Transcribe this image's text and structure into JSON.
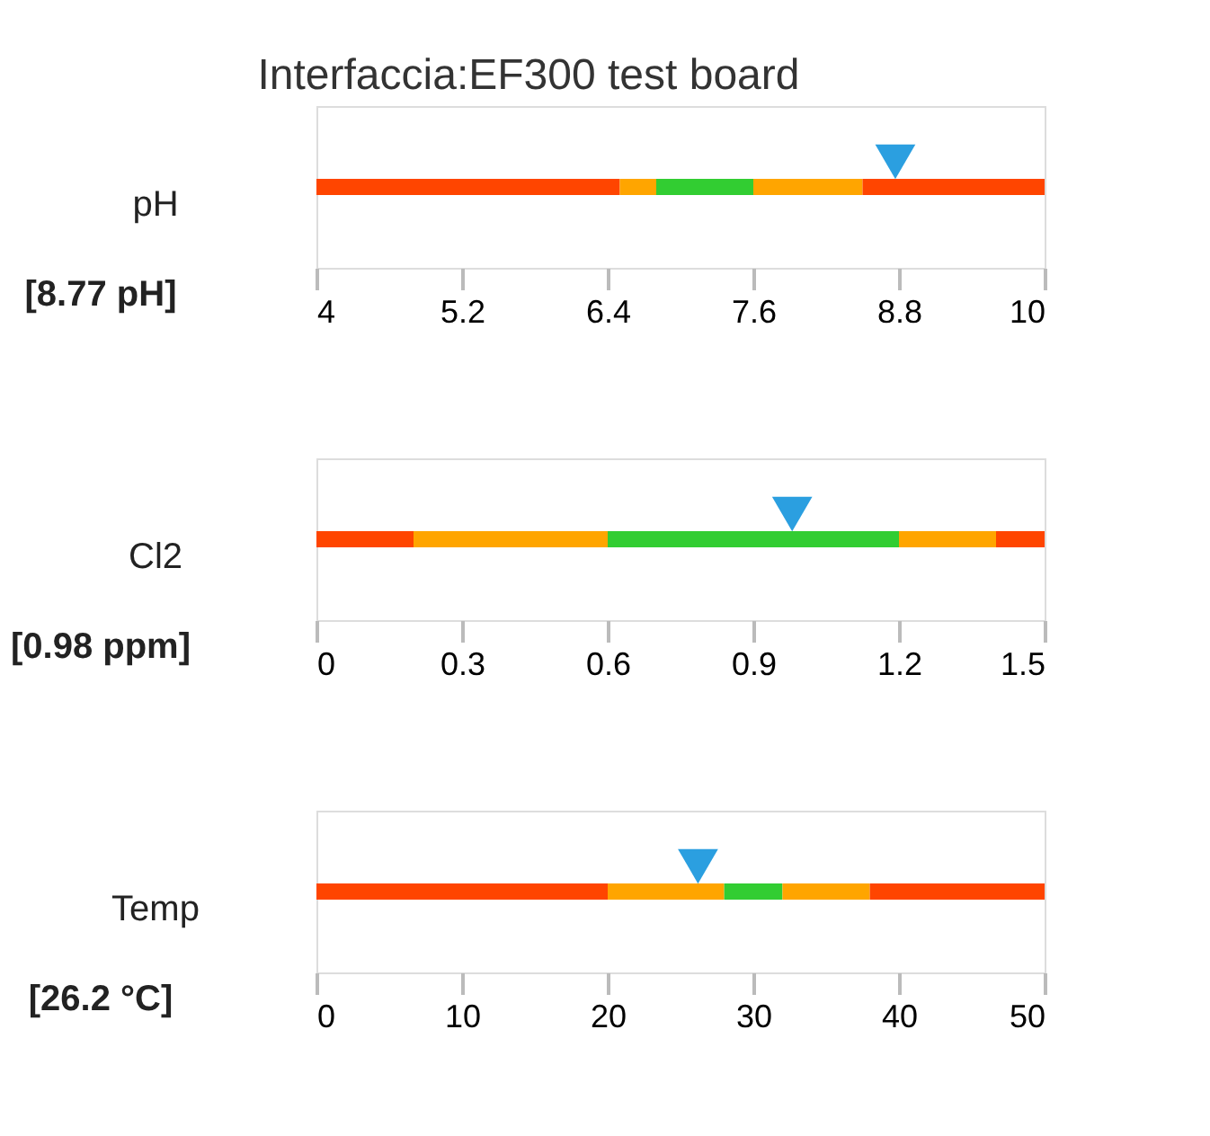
{
  "chart_data": [
    {
      "type": "scatter",
      "orientation": "horizontal",
      "title": "Interfaccia:EF300 test board",
      "categories": [
        "pH"
      ],
      "values": [
        8.77
      ],
      "marker": "triangle",
      "color": "#2b9fe0",
      "annotations": [
        "[8.77 pH]"
      ],
      "xlim": [
        4,
        10
      ],
      "xticks": [
        4,
        5.2,
        6.4,
        7.6,
        8.8,
        10
      ],
      "grid": false,
      "bands": [
        {
          "axis": "x",
          "from": 4,
          "to": 6.5,
          "color": "#ff4500"
        },
        {
          "axis": "x",
          "from": 6.5,
          "to": 6.8,
          "color": "#ffa500"
        },
        {
          "axis": "x",
          "from": 6.8,
          "to": 7.6,
          "color": "#32cd32"
        },
        {
          "axis": "x",
          "from": 7.6,
          "to": 8.5,
          "color": "#ffa500"
        },
        {
          "axis": "x",
          "from": 8.5,
          "to": 10,
          "color": "#ff4500"
        }
      ]
    },
    {
      "type": "scatter",
      "orientation": "horizontal",
      "categories": [
        "Cl2"
      ],
      "values": [
        0.98
      ],
      "marker": "triangle",
      "color": "#2b9fe0",
      "annotations": [
        "[0.98 ppm]"
      ],
      "xlim": [
        0,
        1.5
      ],
      "xticks": [
        0,
        0.3,
        0.6,
        0.9,
        1.2,
        1.5
      ],
      "grid": false,
      "bands": [
        {
          "axis": "x",
          "from": 0,
          "to": 0.2,
          "color": "#ff4500"
        },
        {
          "axis": "x",
          "from": 0.2,
          "to": 0.6,
          "color": "#ffa500"
        },
        {
          "axis": "x",
          "from": 0.6,
          "to": 1.2,
          "color": "#32cd32"
        },
        {
          "axis": "x",
          "from": 1.2,
          "to": 1.4,
          "color": "#ffa500"
        },
        {
          "axis": "x",
          "from": 1.4,
          "to": 1.5,
          "color": "#ff4500"
        }
      ]
    },
    {
      "type": "scatter",
      "orientation": "horizontal",
      "categories": [
        "Temp"
      ],
      "values": [
        26.2
      ],
      "marker": "triangle",
      "color": "#2b9fe0",
      "annotations": [
        "[26.2 °C]"
      ],
      "xlim": [
        0,
        50
      ],
      "xticks": [
        0,
        10,
        20,
        30,
        40,
        50
      ],
      "grid": false,
      "bands": [
        {
          "axis": "x",
          "from": 0,
          "to": 20,
          "color": "#ff4500"
        },
        {
          "axis": "x",
          "from": 20,
          "to": 28,
          "color": "#ffa500"
        },
        {
          "axis": "x",
          "from": 28,
          "to": 32,
          "color": "#32cd32"
        },
        {
          "axis": "x",
          "from": 32,
          "to": 38,
          "color": "#ffa500"
        },
        {
          "axis": "x",
          "from": 38,
          "to": 50,
          "color": "#ff4500"
        }
      ]
    }
  ]
}
